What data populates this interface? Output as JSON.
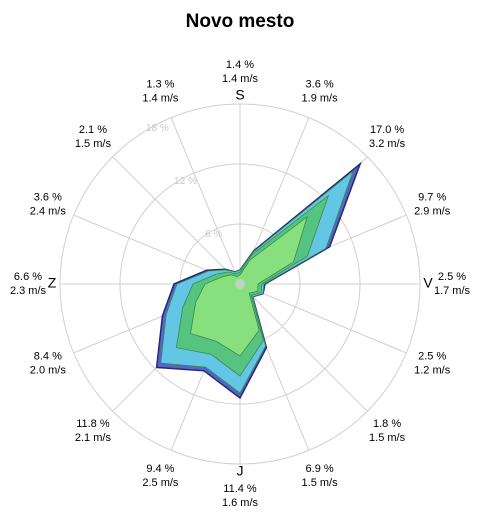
{
  "chart_data": {
    "type": "windrose",
    "title": "Novo mesto",
    "categories": [
      "S",
      null,
      null,
      null,
      "V",
      null,
      null,
      null,
      "J",
      null,
      null,
      null,
      "Z",
      null,
      null,
      null
    ],
    "direction_labels": [
      {
        "frequency": "1.4 %",
        "speed": "1.4 m/s"
      },
      {
        "frequency": "3.6 %",
        "speed": "1.9 m/s"
      },
      {
        "frequency": "17.0 %",
        "speed": "3.2 m/s"
      },
      {
        "frequency": "9.7 %",
        "speed": "2.9 m/s"
      },
      {
        "frequency": "2.5 %",
        "speed": "1.7 m/s"
      },
      {
        "frequency": "2.5 %",
        "speed": "1.2 m/s"
      },
      {
        "frequency": "1.8 %",
        "speed": "1.5 m/s"
      },
      {
        "frequency": "6.9 %",
        "speed": "1.5 m/s"
      },
      {
        "frequency": "11.4 %",
        "speed": "1.6 m/s"
      },
      {
        "frequency": "9.4 %",
        "speed": "2.5 m/s"
      },
      {
        "frequency": "11.8 %",
        "speed": "2.1 m/s"
      },
      {
        "frequency": "8.4 %",
        "speed": "2.0 m/s"
      },
      {
        "frequency": "6.6 %",
        "speed": "2.3 m/s"
      },
      {
        "frequency": "3.6 %",
        "speed": "2.4 m/s"
      },
      {
        "frequency": "2.1 %",
        "speed": "1.5 m/s"
      },
      {
        "frequency": "1.3 %",
        "speed": "1.4 m/s"
      }
    ],
    "series": [
      {
        "color": "#8ae27c",
        "values": [
          0.9,
          2.6,
          9.5,
          5.8,
          1.8,
          1.9,
          1.3,
          5.0,
          7.2,
          6.2,
          7.0,
          4.8,
          3.5,
          1.9,
          1.3,
          0.8
        ]
      },
      {
        "color": "#55c47a",
        "values": [
          0.3,
          0.6,
          3.0,
          1.5,
          0.4,
          0.4,
          0.3,
          1.1,
          2.0,
          1.4,
          2.0,
          1.4,
          1.2,
          0.7,
          0.4,
          0.3
        ]
      },
      {
        "color": "#64cbe6",
        "values": [
          0.2,
          0.3,
          3.5,
          2.0,
          0.2,
          0.2,
          0.2,
          0.6,
          1.7,
          1.4,
          2.2,
          1.8,
          1.6,
          0.8,
          0.3,
          0.2
        ]
      },
      {
        "color": "#4a5ec4",
        "values": [
          0.0,
          0.1,
          1.0,
          0.4,
          0.1,
          0.0,
          0.0,
          0.2,
          0.5,
          0.4,
          0.6,
          0.4,
          0.3,
          0.2,
          0.1,
          0.0
        ]
      }
    ],
    "rlim": [
      0,
      18
    ],
    "rticks": [
      {
        "value": 6,
        "label": "6 %"
      },
      {
        "value": 12,
        "label": "12 %"
      },
      {
        "value": 18,
        "label": "18 %"
      }
    ],
    "grid": true
  }
}
